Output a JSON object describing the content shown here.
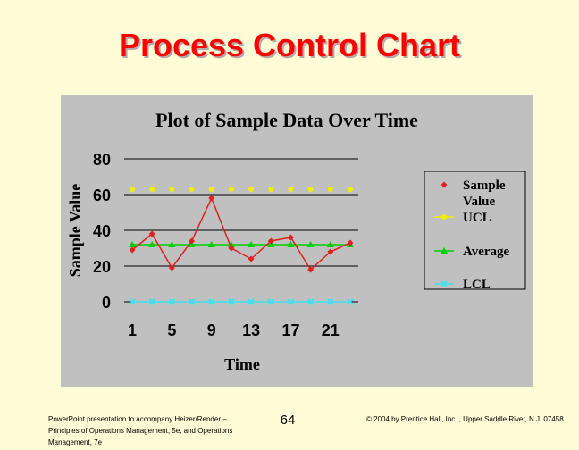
{
  "slide": {
    "title": "Process Control Chart",
    "footer_left": "PowerPoint presentation to accompany Heizer/Render – Principles of Operations Management, 5e, and Operations Management, 7e",
    "page_number": "64",
    "footer_right": "© 2004 by Prentice Hall, Inc. , Upper Saddle River, N.J. 07458"
  },
  "chart_data": {
    "type": "line",
    "title": "Plot of Sample Data Over Time",
    "xlabel": "Time",
    "ylabel": "Sample Value",
    "x": [
      1,
      2,
      3,
      4,
      5,
      6,
      7,
      8,
      9,
      10,
      11,
      12
    ],
    "x_ticks": [
      1,
      5,
      9,
      13,
      17,
      21
    ],
    "x_positions": [
      1,
      3,
      5,
      7,
      9,
      11,
      13,
      15,
      17,
      19,
      21,
      23
    ],
    "ylim": [
      0,
      80
    ],
    "y_ticks": [
      0,
      20,
      40,
      60,
      80
    ],
    "grid": true,
    "legend_position": "right",
    "series": [
      {
        "name": "Sample Value",
        "color": "#e02020",
        "marker": "diamond",
        "values": [
          29,
          38,
          19,
          34,
          58,
          30,
          24,
          34,
          36,
          18,
          28,
          33
        ]
      },
      {
        "name": "UCL",
        "color": "#f0f000",
        "marker": "circle",
        "values": [
          63,
          63,
          63,
          63,
          63,
          63,
          63,
          63,
          63,
          63,
          63,
          63
        ]
      },
      {
        "name": "Average",
        "color": "#00d000",
        "marker": "triangle",
        "values": [
          32,
          32,
          32,
          32,
          32,
          32,
          32,
          32,
          32,
          32,
          32,
          32
        ]
      },
      {
        "name": "LCL",
        "color": "#40e0f0",
        "marker": "cross",
        "values": [
          0,
          0,
          0,
          0,
          0,
          0,
          0,
          0,
          0,
          0,
          0,
          0
        ]
      }
    ]
  }
}
